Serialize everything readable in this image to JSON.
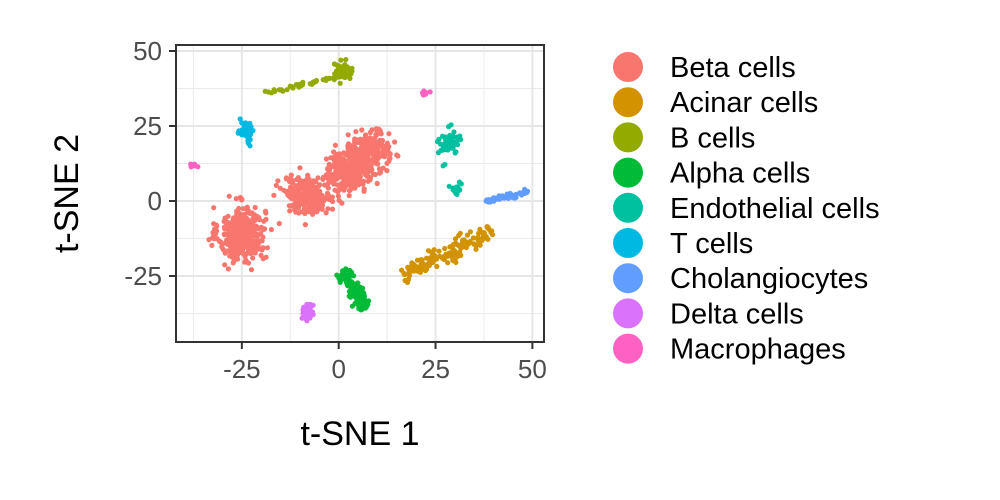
{
  "chart_data": {
    "type": "scatter",
    "xlabel": "t-SNE 1",
    "ylabel": "t-SNE 2",
    "xlim": [
      -42,
      53
    ],
    "ylim": [
      -47,
      52
    ],
    "x_ticks": [
      -25,
      0,
      25,
      50
    ],
    "y_ticks": [
      -25,
      0,
      25,
      50
    ],
    "x_tick_labels": [
      "-25",
      "0",
      "25",
      "50"
    ],
    "y_tick_labels": [
      "-25",
      "0",
      "25",
      "50"
    ],
    "grid": true,
    "legend_position": "right",
    "series": [
      {
        "name": "Beta cells",
        "color": "#F8766D",
        "clusters": [
          {
            "center": [
              -25,
              -11
            ],
            "spread": [
              6,
              9
            ],
            "n": 380
          },
          {
            "center": [
              -8,
              2
            ],
            "spread": [
              6,
              6
            ],
            "n": 260
          },
          {
            "center": [
              3,
              10
            ],
            "spread": [
              6,
              7
            ],
            "n": 320
          },
          {
            "center": [
              8,
              17
            ],
            "spread": [
              5,
              6
            ],
            "n": 200
          }
        ]
      },
      {
        "name": "Acinar cells",
        "color": "#D39200",
        "clusters": [
          {
            "from": [
              16,
              -25
            ],
            "to": [
              40,
              -10
            ],
            "width": 3,
            "n": 140
          }
        ]
      },
      {
        "name": "B cells",
        "color": "#93AA00",
        "clusters": [
          {
            "from": [
              -19,
              36
            ],
            "to": [
              -2,
              41
            ],
            "width": 0.8,
            "n": 40
          },
          {
            "center": [
              1,
              43
            ],
            "spread": [
              2.5,
              2.5
            ],
            "n": 70
          }
        ]
      },
      {
        "name": "Alpha cells",
        "color": "#00BA38",
        "clusters": [
          {
            "from": [
              1,
              -23
            ],
            "to": [
              7,
              -36
            ],
            "width": 2,
            "n": 110
          }
        ]
      },
      {
        "name": "Endothelial cells",
        "color": "#00C19F",
        "clusters": [
          {
            "center": [
              29,
              20
            ],
            "spread": [
              2.5,
              4
            ],
            "n": 60
          },
          {
            "center": [
              30,
              4
            ],
            "spread": [
              1.2,
              1.5
            ],
            "n": 18
          }
        ]
      },
      {
        "name": "T cells",
        "color": "#00B9E3",
        "clusters": [
          {
            "center": [
              -24,
              23
            ],
            "spread": [
              2,
              3.5
            ],
            "n": 55
          }
        ]
      },
      {
        "name": "Cholangiocytes",
        "color": "#619CFF",
        "clusters": [
          {
            "from": [
              38,
              0
            ],
            "to": [
              49,
              3
            ],
            "width": 1,
            "n": 45
          }
        ]
      },
      {
        "name": "Delta cells",
        "color": "#DB72FB",
        "clusters": [
          {
            "center": [
              -8,
              -37
            ],
            "spread": [
              1.5,
              3
            ],
            "n": 35
          }
        ]
      },
      {
        "name": "Macrophages",
        "color": "#FF61C3",
        "clusters": [
          {
            "center": [
              -37,
              12
            ],
            "spread": [
              1,
              0.8
            ],
            "n": 8
          },
          {
            "center": [
              22,
              36
            ],
            "spread": [
              1.3,
              0.8
            ],
            "n": 8
          }
        ]
      }
    ]
  }
}
